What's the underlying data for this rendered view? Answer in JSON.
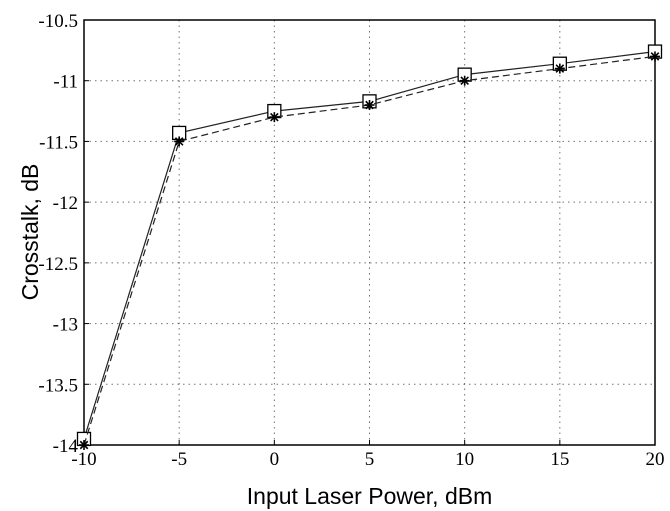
{
  "chart_data": {
    "type": "line",
    "title": "",
    "xlabel": "Input Laser Power,  dBm",
    "ylabel": "Crosstalk,  dB",
    "xlim": [
      -10,
      20
    ],
    "ylim": [
      -14,
      -10.5
    ],
    "x_ticks": [
      -10,
      -5,
      0,
      5,
      10,
      15,
      20
    ],
    "y_ticks": [
      -10.5,
      -11,
      -11.5,
      -12,
      -12.5,
      -13,
      -13.5,
      -14
    ],
    "x_tick_labels": [
      "-10",
      "-5",
      "0",
      "5",
      "10",
      "15",
      "20"
    ],
    "y_tick_labels": [
      "-10.5",
      "-11",
      "-11.5",
      "-12",
      "-12.5",
      "-13",
      "-13.5",
      "-14"
    ],
    "grid": true,
    "x": [
      -10,
      -5,
      0,
      5,
      10,
      15,
      20
    ],
    "series": [
      {
        "marker": "square",
        "line_style": "solid",
        "values": [
          -13.95,
          -11.43,
          -11.25,
          -11.17,
          -10.95,
          -10.86,
          -10.76
        ]
      },
      {
        "marker": "star",
        "line_style": "dashed",
        "values": [
          -14.0,
          -11.5,
          -11.3,
          -11.2,
          -11.0,
          -10.9,
          -10.8
        ]
      }
    ]
  }
}
